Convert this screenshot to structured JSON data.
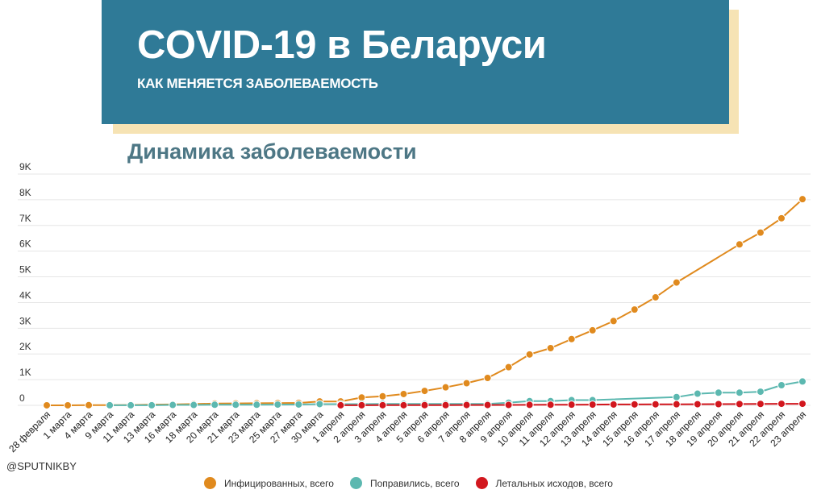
{
  "banner": {
    "title": "COVID-19 в Беларуси",
    "subtitle": "КАК МЕНЯЕТСЯ ЗАБОЛЕВАЕМОСТЬ"
  },
  "credit": "@SPUTNIKBY",
  "colors": {
    "banner": "#2f7a97",
    "banner_shadow": "#f6e3b4",
    "title": "#4d7785",
    "infected": "#e08a1e",
    "recovered": "#5cb8b0",
    "deaths": "#d2171e"
  },
  "chart_data": {
    "type": "line",
    "title": "Динамика заболеваемости",
    "xlabel": "",
    "ylabel": "",
    "ylim": [
      0,
      9000
    ],
    "y_ticks": [
      0,
      1000,
      2000,
      3000,
      4000,
      5000,
      6000,
      7000,
      8000,
      9000
    ],
    "y_tick_labels": [
      "0",
      "1K",
      "2K",
      "3K",
      "4K",
      "5K",
      "6K",
      "7K",
      "8K",
      "9K"
    ],
    "grid": true,
    "legend_position": "bottom",
    "categories": [
      "28 февраля",
      "1 марта",
      "4 марта",
      "9 марта",
      "11 марта",
      "13 марта",
      "16 марта",
      "18 марта",
      "20 марта",
      "21 марта",
      "23 марта",
      "25 марта",
      "27 марта",
      "30 марта",
      "1 апреля",
      "2 апреля",
      "3 апреля",
      "4 апреля",
      "5 апреля",
      "6 апреля",
      "7 апреля",
      "8 апреля",
      "9 апреля",
      "10 апреля",
      "11 апреля",
      "12 апреля",
      "13 апреля",
      "14 апреля",
      "15 апреля",
      "16 апреля",
      "17 апреля",
      "18 апреля",
      "19 апреля",
      "20 апреля",
      "21 апреля",
      "22 апреля",
      "23 апреля"
    ],
    "series": [
      {
        "name": "Инфицированных, всего",
        "color": "#e08a1e",
        "values": [
          1,
          1,
          6,
          null,
          12,
          27,
          36,
          51,
          69,
          76,
          81,
          86,
          94,
          152,
          152,
          304,
          351,
          440,
          562,
          700,
          861,
          1066,
          1486,
          1981,
          2226,
          2578,
          2919,
          3281,
          3728,
          4204,
          4779,
          null,
          null,
          6264,
          6723,
          7281,
          8022
        ]
      },
      {
        "name": "Поправились, всего",
        "color": "#5cb8b0",
        "values": [
          null,
          null,
          null,
          3,
          3,
          3,
          15,
          15,
          22,
          22,
          22,
          28,
          32,
          48,
          48,
          48,
          53,
          53,
          53,
          53,
          53,
          53,
          102,
          163,
          163,
          203,
          203,
          null,
          null,
          null,
          321,
          453,
          493,
          493,
          530,
          784,
          928
        ]
      },
      {
        "name": "Летальных исходов, всего",
        "color": "#d2171e",
        "values": [
          null,
          null,
          null,
          null,
          null,
          null,
          null,
          null,
          null,
          null,
          null,
          null,
          null,
          null,
          2,
          4,
          5,
          5,
          8,
          8,
          13,
          13,
          16,
          19,
          23,
          26,
          29,
          33,
          36,
          40,
          42,
          45,
          47,
          51,
          55,
          60,
          60
        ]
      }
    ]
  }
}
